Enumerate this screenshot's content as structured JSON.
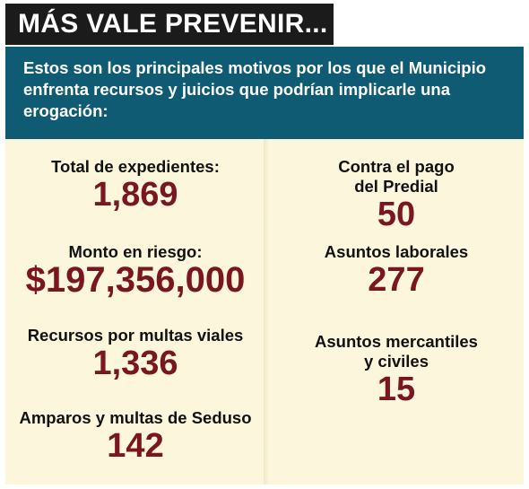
{
  "header": {
    "title": "MÁS VALE PREVENIR...",
    "subtitle": "Estos son los principales motivos por los que el Municipio enfrenta recursos y juicios que podrían implicarle una erogación:"
  },
  "left": [
    {
      "label": [
        "Total de expedientes:"
      ],
      "value": "1,869"
    },
    {
      "label": [
        "Monto en riesgo:"
      ],
      "value": "$197,356,000"
    },
    {
      "label": [
        "Recursos por multas viales"
      ],
      "value": "1,336"
    },
    {
      "label": [
        "Amparos y multas de Seduso"
      ],
      "value": "142"
    }
  ],
  "right": [
    {
      "label": [
        "Contra el pago",
        "del Predial"
      ],
      "value": "50"
    },
    {
      "label": [
        "Asuntos laborales"
      ],
      "value": "277"
    },
    {
      "label": [
        "Asuntos mercantiles",
        "y civiles"
      ],
      "value": "15"
    }
  ]
}
